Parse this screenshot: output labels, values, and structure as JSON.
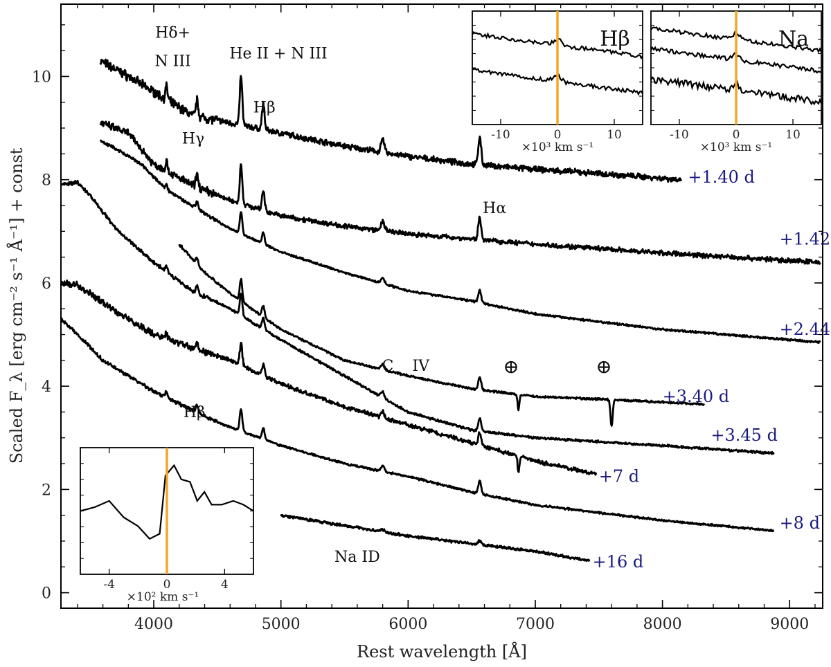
{
  "chart_data": {
    "type": "line",
    "title": "",
    "xlabel": "Rest wavelength [Å]",
    "ylabel": "Scaled F_λ [erg cm⁻² s⁻¹ Å⁻¹] + const",
    "xlim": [
      3270,
      9260
    ],
    "ylim": [
      -0.3,
      11.4
    ],
    "x_ticks": [
      4000,
      5000,
      6000,
      7000,
      8000,
      9000
    ],
    "y_ticks": [
      0,
      2,
      4,
      6,
      8,
      10
    ],
    "colors": {
      "spectrum": "#000000",
      "epoch_label": "#1a1a80",
      "telluric": "#1a7a1a",
      "rest_marker": "#f5a623"
    },
    "series": [
      {
        "name": "+1.40 d",
        "x_range": [
          3580,
          8150
        ],
        "anchors": [
          [
            3580,
            10.3
          ],
          [
            3800,
            10.0
          ],
          [
            4000,
            9.7
          ],
          [
            4300,
            9.25
          ],
          [
            4600,
            9.1
          ],
          [
            5000,
            8.9
          ],
          [
            5500,
            8.65
          ],
          [
            6000,
            8.45
          ],
          [
            6500,
            8.3
          ],
          [
            7000,
            8.2
          ],
          [
            7500,
            8.12
          ],
          [
            8150,
            8.0
          ]
        ],
        "noise": 0.085
      },
      {
        "name": "+1.42 d",
        "x_range": [
          3580,
          9240
        ],
        "anchors": [
          [
            3580,
            9.1
          ],
          [
            3800,
            8.9
          ],
          [
            4000,
            8.3
          ],
          [
            4300,
            7.9
          ],
          [
            4600,
            7.6
          ],
          [
            5000,
            7.3
          ],
          [
            5500,
            7.1
          ],
          [
            6000,
            6.95
          ],
          [
            6500,
            6.85
          ],
          [
            7000,
            6.75
          ],
          [
            8000,
            6.58
          ],
          [
            9240,
            6.4
          ]
        ],
        "noise": 0.07
      },
      {
        "name": "+2.44 d",
        "x_range": [
          3580,
          9240
        ],
        "anchors": [
          [
            3580,
            8.75
          ],
          [
            3700,
            8.6
          ],
          [
            3900,
            8.3
          ],
          [
            4100,
            7.8
          ],
          [
            4300,
            7.5
          ],
          [
            4600,
            7.05
          ],
          [
            5000,
            6.6
          ],
          [
            5500,
            6.2
          ],
          [
            6000,
            5.85
          ],
          [
            6500,
            5.65
          ],
          [
            7000,
            5.4
          ],
          [
            8000,
            5.1
          ],
          [
            9240,
            4.85
          ]
        ],
        "noise": 0.03
      },
      {
        "name": "+3.40 d",
        "x_range": [
          4200,
          8330
        ],
        "anchors": [
          [
            4200,
            6.75
          ],
          [
            4400,
            6.2
          ],
          [
            4600,
            5.8
          ],
          [
            5000,
            5.1
          ],
          [
            5500,
            4.5
          ],
          [
            6000,
            4.2
          ],
          [
            6500,
            3.95
          ],
          [
            7000,
            3.8
          ],
          [
            7500,
            3.75
          ],
          [
            8330,
            3.65
          ]
        ],
        "noise": 0.03
      },
      {
        "name": "+3.45 d",
        "x_range": [
          3270,
          8880
        ],
        "anchors": [
          [
            3270,
            7.9
          ],
          [
            3400,
            7.95
          ],
          [
            3500,
            7.7
          ],
          [
            3700,
            7.05
          ],
          [
            4000,
            6.4
          ],
          [
            4300,
            5.85
          ],
          [
            4600,
            5.5
          ],
          [
            5000,
            4.9
          ],
          [
            5500,
            4.2
          ],
          [
            6000,
            3.5
          ],
          [
            6500,
            3.15
          ],
          [
            7000,
            3.0
          ],
          [
            8000,
            2.85
          ],
          [
            8880,
            2.7
          ]
        ],
        "noise": 0.035
      },
      {
        "name": "+7 d",
        "x_range": [
          3270,
          7480
        ],
        "anchors": [
          [
            3270,
            6.0
          ],
          [
            3400,
            5.95
          ],
          [
            3700,
            5.45
          ],
          [
            4000,
            5.0
          ],
          [
            4300,
            4.75
          ],
          [
            4600,
            4.5
          ],
          [
            5000,
            4.05
          ],
          [
            5500,
            3.6
          ],
          [
            6000,
            3.25
          ],
          [
            6500,
            2.9
          ],
          [
            7000,
            2.55
          ],
          [
            7480,
            2.3
          ]
        ],
        "noise": 0.06
      },
      {
        "name": "+8 d",
        "x_range": [
          3270,
          8880
        ],
        "anchors": [
          [
            3270,
            5.3
          ],
          [
            3400,
            5.0
          ],
          [
            3600,
            4.5
          ],
          [
            4000,
            3.9
          ],
          [
            4500,
            3.3
          ],
          [
            5000,
            2.85
          ],
          [
            5500,
            2.5
          ],
          [
            6000,
            2.25
          ],
          [
            6500,
            1.95
          ],
          [
            7000,
            1.7
          ],
          [
            8000,
            1.4
          ],
          [
            8880,
            1.2
          ]
        ],
        "noise": 0.03
      },
      {
        "name": "+16 d",
        "x_range": [
          5000,
          7430
        ],
        "anchors": [
          [
            5000,
            1.5
          ],
          [
            5500,
            1.3
          ],
          [
            6000,
            1.1
          ],
          [
            6500,
            0.95
          ],
          [
            7000,
            0.8
          ],
          [
            7430,
            0.62
          ]
        ],
        "noise": 0.04
      }
    ],
    "emission_lines_A": [
      4100,
      4340,
      4640,
      4686,
      4861,
      5801,
      6563
    ],
    "telluric_features_A": [
      6870,
      7600
    ],
    "epoch_labels": [
      "+1.40 d",
      "+1.42 d",
      "+2.44 d",
      "+3.40 d",
      "+3.45 d",
      "+7 d",
      "+8 d",
      "+16 d"
    ],
    "annotations": [
      {
        "text": "Hδ+",
        "x": 4150,
        "y": 10.75
      },
      {
        "text": "N III",
        "x": 4150,
        "y": 10.2
      },
      {
        "text": "He II + N III",
        "x": 4980,
        "y": 10.35
      },
      {
        "text": "Hβ",
        "x": 4870,
        "y": 9.3
      },
      {
        "text": "Hγ",
        "x": 4310,
        "y": 8.7
      },
      {
        "text": "Hα",
        "x": 6680,
        "y": 7.35
      },
      {
        "text": "C",
        "x": 5840,
        "y": 4.3
      },
      {
        "text": "IV",
        "x": 6100,
        "y": 4.3
      },
      {
        "text": "Hβ",
        "x": 4320,
        "y": 3.4
      },
      {
        "text": "Na ID",
        "x": 5600,
        "y": 0.6
      }
    ],
    "telluric_symbol": "⊕",
    "insets": [
      {
        "name": "Hβ",
        "title": "Hβ",
        "xlim": [
          -15,
          15
        ],
        "x_ticks": [
          -10,
          0,
          10
        ],
        "xlabel": "×10³ km s⁻¹",
        "ylim": [
          0,
          1
        ],
        "n_spectra": 2
      },
      {
        "name": "Na",
        "title": "Na",
        "xlim": [
          -15,
          15
        ],
        "x_ticks": [
          -10,
          0,
          10
        ],
        "xlabel": "×10³ km s⁻¹",
        "ylim": [
          0,
          1
        ],
        "n_spectra": 3
      },
      {
        "name": "Na ID zoom",
        "title": "",
        "xlim": [
          -6,
          6
        ],
        "x_ticks": [
          -4,
          0,
          4
        ],
        "xlabel": "×10² km s⁻¹",
        "ylim": [
          0,
          1
        ],
        "x": [
          -6,
          -5,
          -4,
          -3,
          -2,
          -1.2,
          -0.5,
          -0.1,
          0.5,
          1,
          1.6,
          2.1,
          2.6,
          3.1,
          3.8,
          4.6,
          5.3,
          6
        ],
        "y": [
          0.5,
          0.53,
          0.58,
          0.45,
          0.38,
          0.28,
          0.32,
          0.78,
          0.86,
          0.75,
          0.73,
          0.58,
          0.65,
          0.55,
          0.55,
          0.58,
          0.55,
          0.5
        ]
      }
    ]
  }
}
